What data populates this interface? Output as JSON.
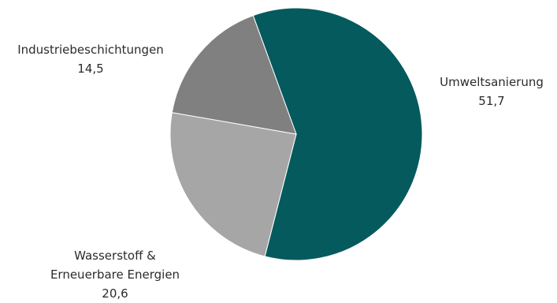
{
  "chart_data": {
    "type": "pie",
    "title": "",
    "slices": [
      {
        "label": "Umweltsanierung",
        "value": 51.7,
        "display": "51,7",
        "color": "#055a5e"
      },
      {
        "label": "Wasserstoff & Erneuerbare Energien",
        "label_lines": [
          "Wasserstoff &",
          "Erneuerbare Energien"
        ],
        "value": 20.6,
        "display": "20,6",
        "color": "#a6a6a6"
      },
      {
        "label": "Industriebeschichtungen",
        "value": 14.5,
        "display": "14,5",
        "color": "#808080"
      }
    ]
  }
}
